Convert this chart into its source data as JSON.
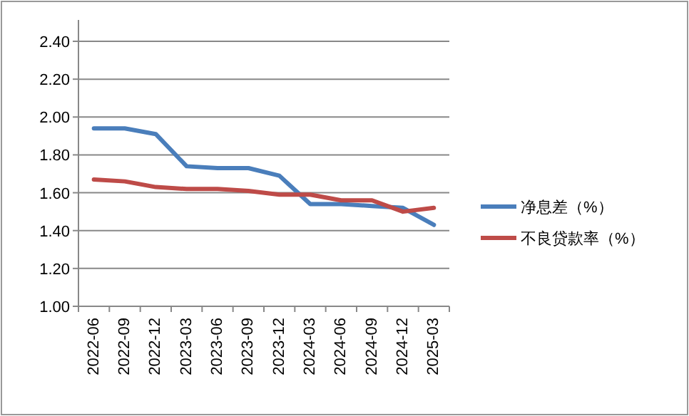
{
  "chart_data": {
    "type": "line",
    "categories": [
      "2022-06",
      "2022-09",
      "2022-12",
      "2023-03",
      "2023-06",
      "2023-09",
      "2023-12",
      "2024-03",
      "2024-06",
      "2024-09",
      "2024-12",
      "2025-03"
    ],
    "series": [
      {
        "name": "净息差（%）",
        "color": "#4a7ebb",
        "values": [
          1.94,
          1.94,
          1.91,
          1.74,
          1.73,
          1.73,
          1.69,
          1.54,
          1.54,
          1.53,
          1.52,
          1.43
        ]
      },
      {
        "name": "不良贷款率（%）",
        "color": "#be4b48",
        "values": [
          1.67,
          1.66,
          1.63,
          1.62,
          1.62,
          1.61,
          1.59,
          1.59,
          1.56,
          1.56,
          1.5,
          1.52
        ]
      }
    ],
    "ylim": [
      1.0,
      2.4
    ],
    "yticks": [
      {
        "value": 1.0,
        "label": "1.00"
      },
      {
        "value": 1.2,
        "label": "1.20"
      },
      {
        "value": 1.4,
        "label": "1.40"
      },
      {
        "value": 1.6,
        "label": "1.60"
      },
      {
        "value": 1.8,
        "label": "1.80"
      },
      {
        "value": 2.0,
        "label": "2.00"
      },
      {
        "value": 2.2,
        "label": "2.20"
      },
      {
        "value": 2.4,
        "label": "2.40"
      }
    ],
    "grid": "y",
    "legend": "right",
    "marker": "none",
    "line_style": "solid"
  }
}
